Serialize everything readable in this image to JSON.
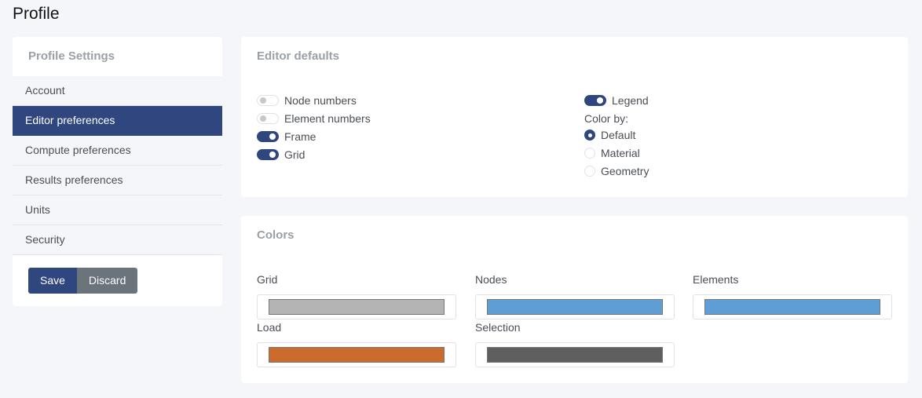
{
  "page": {
    "title": "Profile"
  },
  "sidebar": {
    "title": "Profile Settings",
    "active": 1,
    "items": [
      {
        "label": "Account"
      },
      {
        "label": "Editor preferences"
      },
      {
        "label": "Compute preferences"
      },
      {
        "label": "Results preferences"
      },
      {
        "label": "Units"
      },
      {
        "label": "Security"
      }
    ],
    "save_label": "Save",
    "discard_label": "Discard"
  },
  "editor": {
    "title": "Editor defaults",
    "toggles": [
      {
        "label": "Node numbers",
        "on": false
      },
      {
        "label": "Element numbers",
        "on": false
      },
      {
        "label": "Frame",
        "on": true
      },
      {
        "label": "Grid",
        "on": true
      }
    ],
    "legend": {
      "label": "Legend",
      "on": true
    },
    "color_by_label": "Color by:",
    "color_by": [
      {
        "label": "Default",
        "selected": true
      },
      {
        "label": "Material",
        "selected": false
      },
      {
        "label": "Geometry",
        "selected": false
      }
    ]
  },
  "colors": {
    "title": "Colors",
    "items": [
      {
        "label": "Grid",
        "color": "#b4b4b4"
      },
      {
        "label": "Nodes",
        "color": "#5f9ed4"
      },
      {
        "label": "Elements",
        "color": "#5f9ed4"
      },
      {
        "label": "Load",
        "color": "#cb6b2d"
      },
      {
        "label": "Selection",
        "color": "#5f5f5f"
      }
    ]
  }
}
